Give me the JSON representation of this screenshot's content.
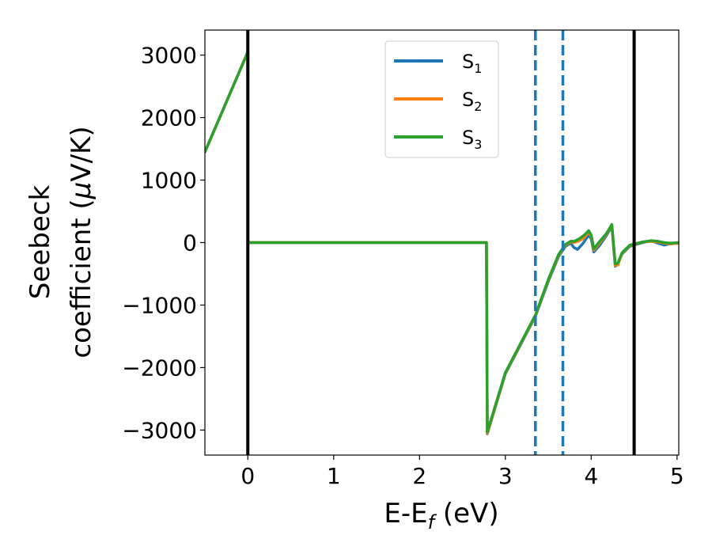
{
  "chart_data": {
    "type": "line",
    "xlabel": "E-E",
    "xlabel_sub": "f",
    "xlabel_unit": " (eV)",
    "ylabel_line1": "Seebeck",
    "ylabel_line2_pre": "coefficient  (",
    "ylabel_mu": "μ",
    "ylabel_line2_post": "V/K)",
    "xlim": [
      -0.5,
      5.02
    ],
    "ylim": [
      -3400,
      3400
    ],
    "xticks": [
      {
        "value": 0,
        "label": "0"
      },
      {
        "value": 1,
        "label": "1"
      },
      {
        "value": 2,
        "label": "2"
      },
      {
        "value": 3,
        "label": "3"
      },
      {
        "value": 4,
        "label": "4"
      },
      {
        "value": 5,
        "label": "5"
      }
    ],
    "yticks": [
      {
        "value": 3000,
        "label": "3000"
      },
      {
        "value": 2000,
        "label": "2000"
      },
      {
        "value": 1000,
        "label": "1000"
      },
      {
        "value": 0,
        "label": "0"
      },
      {
        "value": -1000,
        "label": "−1000"
      },
      {
        "value": -2000,
        "label": "−2000"
      },
      {
        "value": -3000,
        "label": "−3000"
      }
    ],
    "legend_position": "upper-center",
    "vlines": [
      {
        "x": 0.0,
        "style": "solid",
        "color": "#000000"
      },
      {
        "x": 4.5,
        "style": "solid",
        "color": "#000000"
      },
      {
        "x": 3.35,
        "style": "dashed",
        "color": "#1f77b4"
      },
      {
        "x": 3.67,
        "style": "dashed",
        "color": "#1f77b4"
      }
    ],
    "series": [
      {
        "name": "S",
        "sub": "1",
        "color": "#1f77b4",
        "points": [
          [
            -0.5,
            1450
          ],
          [
            0.0,
            3050
          ],
          [
            0.0,
            0
          ],
          [
            2.78,
            0
          ],
          [
            2.79,
            -3060
          ],
          [
            3.0,
            -2100
          ],
          [
            3.35,
            -1180
          ],
          [
            3.5,
            -620
          ],
          [
            3.62,
            -220
          ],
          [
            3.7,
            -60
          ],
          [
            3.76,
            -10
          ],
          [
            3.8,
            -80
          ],
          [
            3.84,
            -110
          ],
          [
            3.9,
            -20
          ],
          [
            3.97,
            120
          ],
          [
            4.0,
            60
          ],
          [
            4.03,
            -150
          ],
          [
            4.1,
            -40
          ],
          [
            4.18,
            120
          ],
          [
            4.24,
            260
          ],
          [
            4.28,
            -380
          ],
          [
            4.3,
            -360
          ],
          [
            4.36,
            -180
          ],
          [
            4.45,
            -60
          ],
          [
            4.6,
            0
          ],
          [
            4.7,
            30
          ],
          [
            4.78,
            -10
          ],
          [
            4.85,
            -40
          ],
          [
            4.92,
            -20
          ],
          [
            5.02,
            -10
          ]
        ]
      },
      {
        "name": "S",
        "sub": "2",
        "color": "#ff7f0e",
        "points": [
          [
            -0.5,
            1450
          ],
          [
            0.0,
            3050
          ],
          [
            0.0,
            0
          ],
          [
            2.78,
            0
          ],
          [
            2.79,
            -3050
          ],
          [
            3.0,
            -2090
          ],
          [
            3.35,
            -1170
          ],
          [
            3.5,
            -600
          ],
          [
            3.62,
            -200
          ],
          [
            3.7,
            -40
          ],
          [
            3.76,
            10
          ],
          [
            3.8,
            0
          ],
          [
            3.86,
            30
          ],
          [
            3.92,
            80
          ],
          [
            3.97,
            170
          ],
          [
            4.0,
            100
          ],
          [
            4.03,
            -120
          ],
          [
            4.1,
            0
          ],
          [
            4.18,
            140
          ],
          [
            4.24,
            280
          ],
          [
            4.28,
            -370
          ],
          [
            4.31,
            -360
          ],
          [
            4.36,
            -170
          ],
          [
            4.45,
            -50
          ],
          [
            4.6,
            10
          ],
          [
            4.7,
            20
          ],
          [
            4.78,
            10
          ],
          [
            4.85,
            -10
          ],
          [
            4.92,
            -20
          ],
          [
            5.02,
            -10
          ]
        ]
      },
      {
        "name": "S",
        "sub": "3",
        "color": "#2ca02c",
        "points": [
          [
            -0.5,
            1450
          ],
          [
            0.0,
            3050
          ],
          [
            0.0,
            0
          ],
          [
            2.78,
            0
          ],
          [
            2.79,
            -3030
          ],
          [
            3.0,
            -2080
          ],
          [
            3.35,
            -1160
          ],
          [
            3.5,
            -590
          ],
          [
            3.62,
            -190
          ],
          [
            3.7,
            -30
          ],
          [
            3.76,
            20
          ],
          [
            3.8,
            20
          ],
          [
            3.86,
            60
          ],
          [
            3.92,
            120
          ],
          [
            3.97,
            190
          ],
          [
            4.0,
            120
          ],
          [
            4.03,
            -100
          ],
          [
            4.1,
            20
          ],
          [
            4.18,
            150
          ],
          [
            4.24,
            290
          ],
          [
            4.28,
            -340
          ],
          [
            4.31,
            -330
          ],
          [
            4.36,
            -160
          ],
          [
            4.45,
            -40
          ],
          [
            4.6,
            10
          ],
          [
            4.7,
            30
          ],
          [
            4.78,
            20
          ],
          [
            4.85,
            0
          ],
          [
            4.92,
            -10
          ],
          [
            5.02,
            0
          ]
        ]
      }
    ]
  }
}
